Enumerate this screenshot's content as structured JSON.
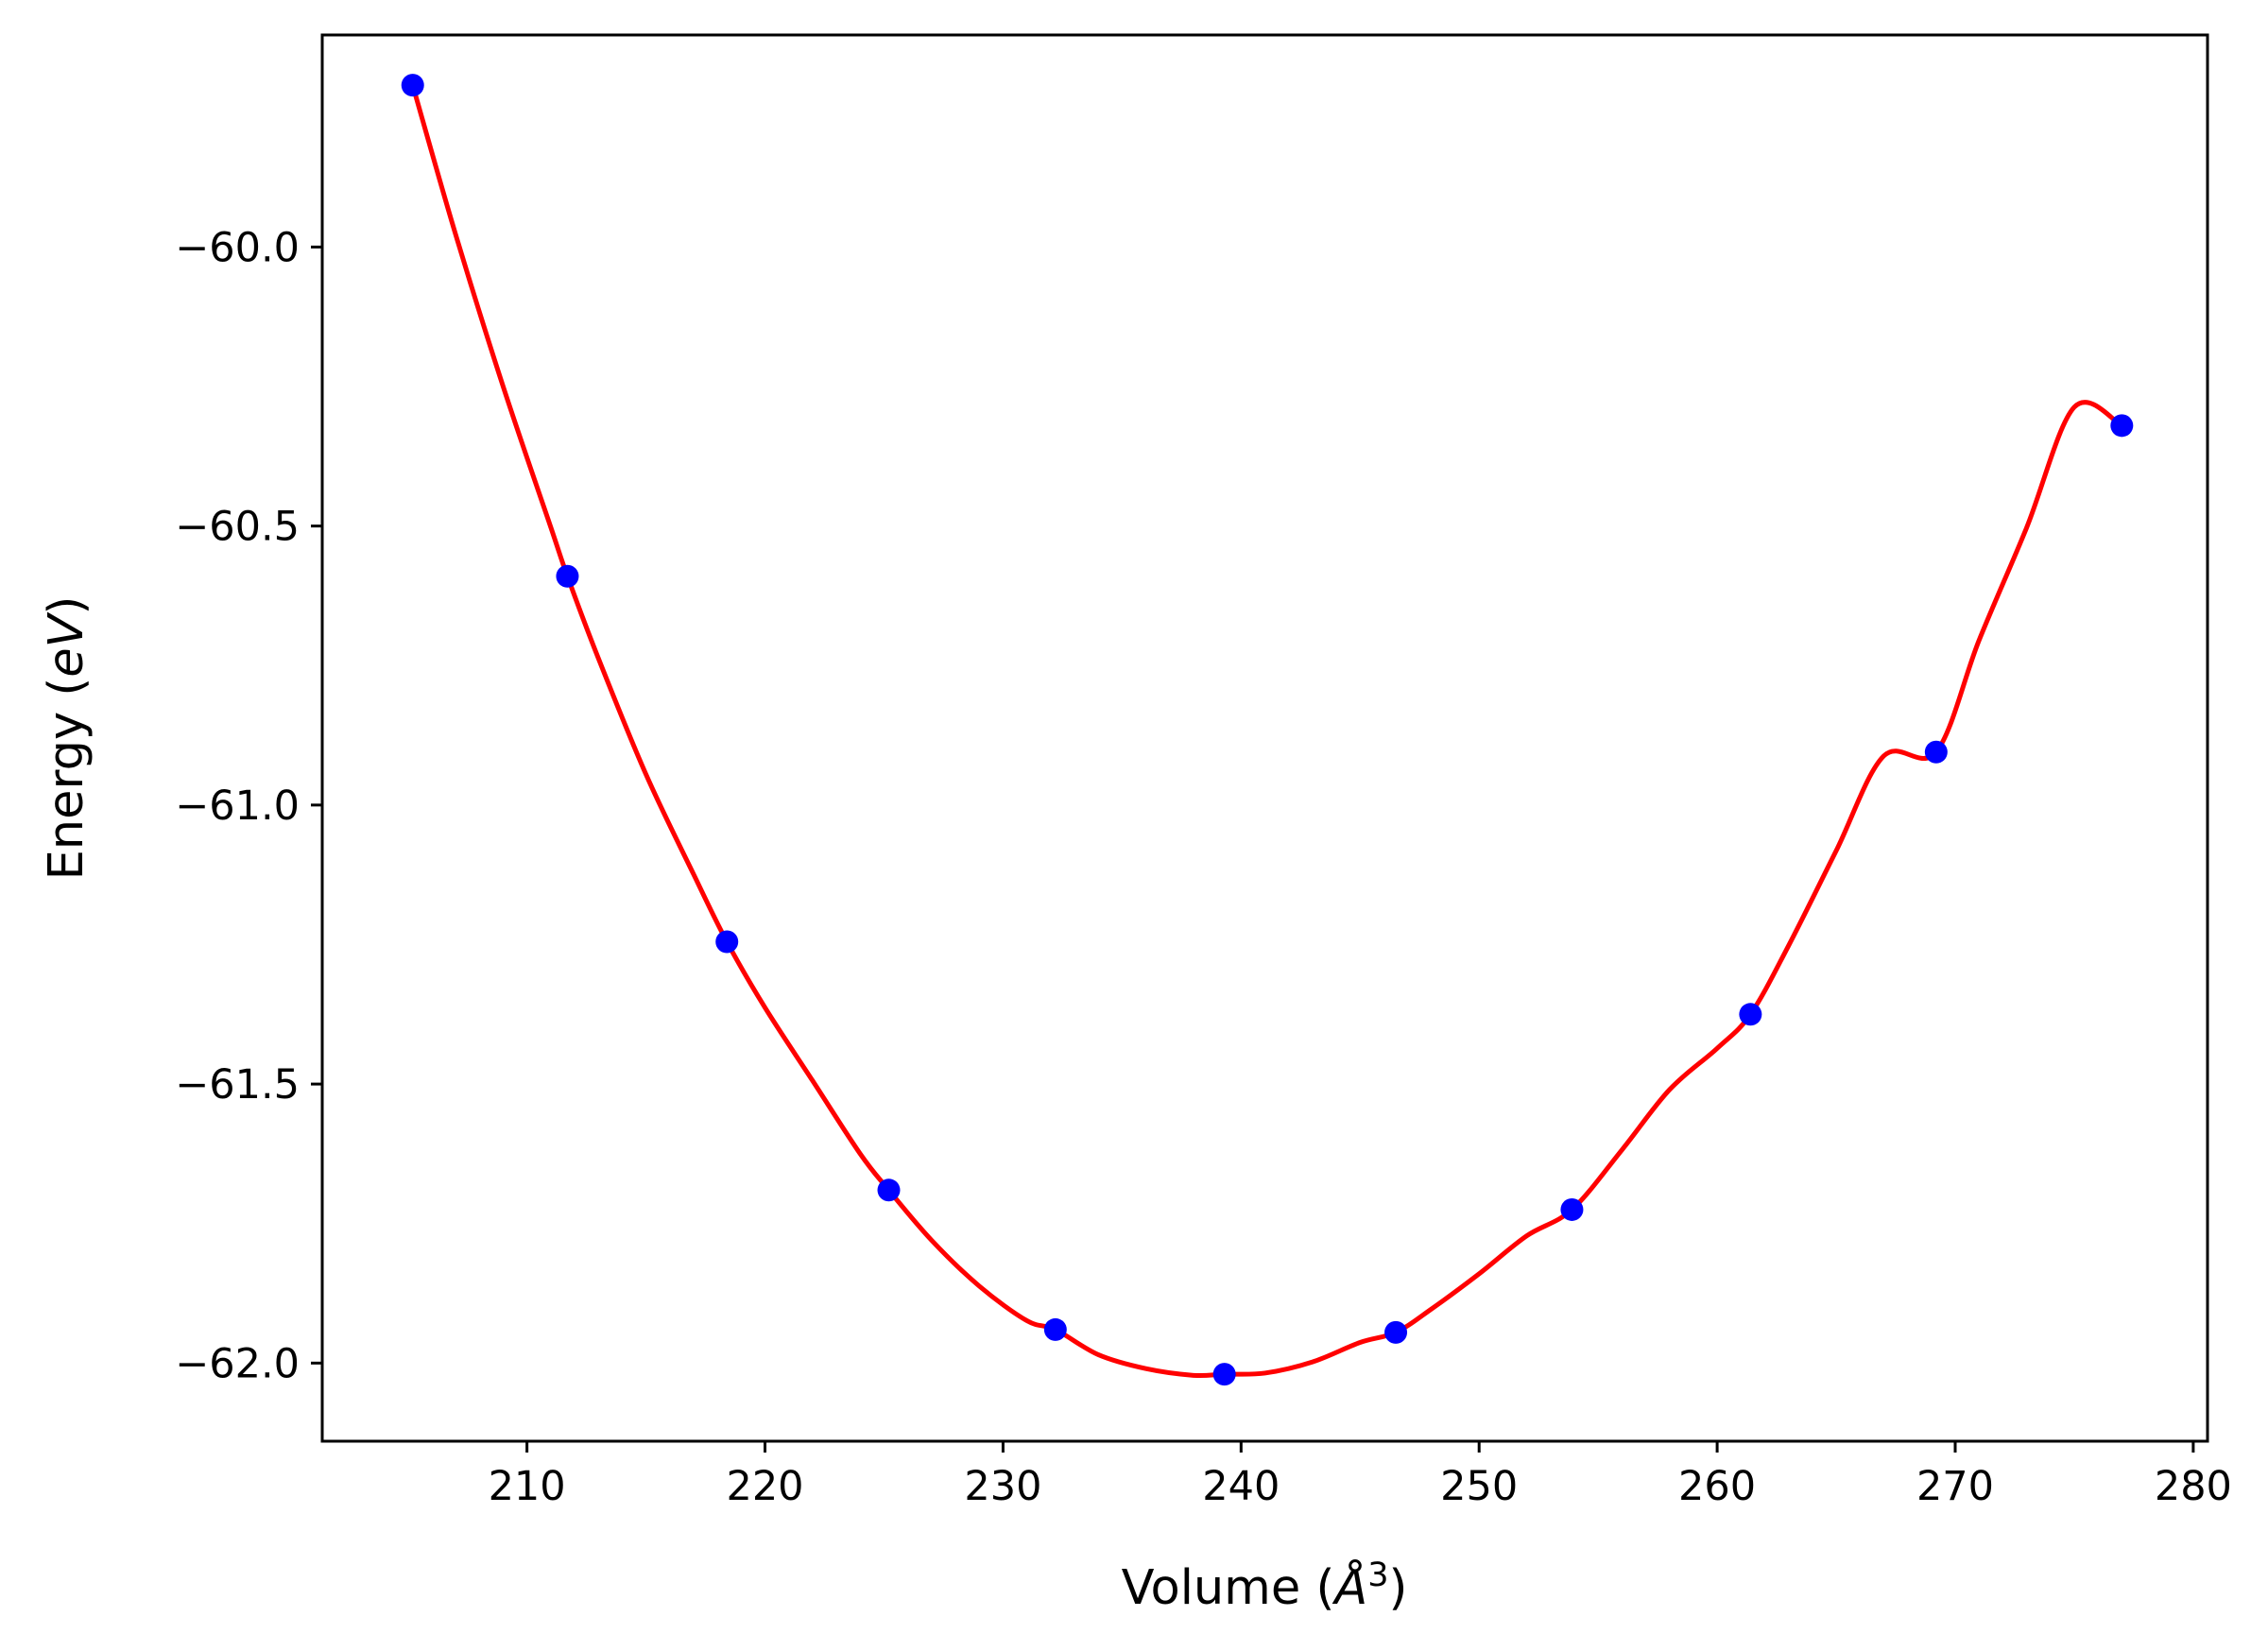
{
  "chart_data": {
    "type": "line",
    "xlabel": "Volume (Å³)",
    "ylabel": "Energy (eV)",
    "xlabel_parts": {
      "prefix": "Volume (",
      "symbol": "Å",
      "sup": "3",
      "suffix": ")"
    },
    "ylabel_parts": {
      "prefix": "Energy (",
      "unit": "eV",
      "suffix": ")"
    },
    "xlim": [
      201.4,
      280.6
    ],
    "ylim": [
      -62.14,
      -59.62
    ],
    "xticks": [
      210,
      220,
      230,
      240,
      250,
      260,
      270,
      280
    ],
    "yticks": [
      -60.0,
      -60.5,
      -61.0,
      -61.5,
      -62.0
    ],
    "xtick_labels": [
      "210",
      "220",
      "230",
      "240",
      "250",
      "260",
      "270",
      "280"
    ],
    "ytick_labels": [
      "−60.0",
      "−60.5",
      "−61.0",
      "−61.5",
      "−62.0"
    ],
    "grid": false,
    "series": [
      {
        "kind": "points",
        "color": "#0000ff",
        "x": [
          205.2,
          211.7,
          218.4,
          225.2,
          232.2,
          239.3,
          246.5,
          253.9,
          261.4,
          269.2,
          277.0
        ],
        "y": [
          -59.71,
          -60.59,
          -61.245,
          -61.69,
          -61.94,
          -62.02,
          -61.945,
          -61.725,
          -61.375,
          -60.905,
          -60.32
        ]
      },
      {
        "kind": "fit-curve",
        "color": "#ff0000",
        "x": [
          205.2,
          207.0,
          209.0,
          211.0,
          211.7,
          213.0,
          215.0,
          217.0,
          218.4,
          220.0,
          222.0,
          224.0,
          225.2,
          227.0,
          229.0,
          231.0,
          232.2,
          234.0,
          236.0,
          238.0,
          239.3,
          241.0,
          243.0,
          245.0,
          246.5,
          248.0,
          250.0,
          252.0,
          253.9,
          256.0,
          258.0,
          260.0,
          261.4,
          263.0,
          265.0,
          267.0,
          269.2,
          271.0,
          273.0,
          275.0,
          277.0
        ],
        "y": [
          -59.71,
          -59.977,
          -60.25,
          -60.502,
          -60.59,
          -60.737,
          -60.945,
          -61.124,
          -61.245,
          -61.363,
          -61.494,
          -61.625,
          -61.69,
          -61.78,
          -61.862,
          -61.924,
          -61.94,
          -61.985,
          -62.01,
          -62.022,
          -62.02,
          -62.018,
          -61.998,
          -61.963,
          -61.945,
          -61.903,
          -61.84,
          -61.772,
          -61.725,
          -61.618,
          -61.51,
          -61.436,
          -61.375,
          -61.252,
          -61.082,
          -60.912,
          -60.905,
          -60.705,
          -60.503,
          -60.287,
          -60.32
        ]
      }
    ]
  }
}
